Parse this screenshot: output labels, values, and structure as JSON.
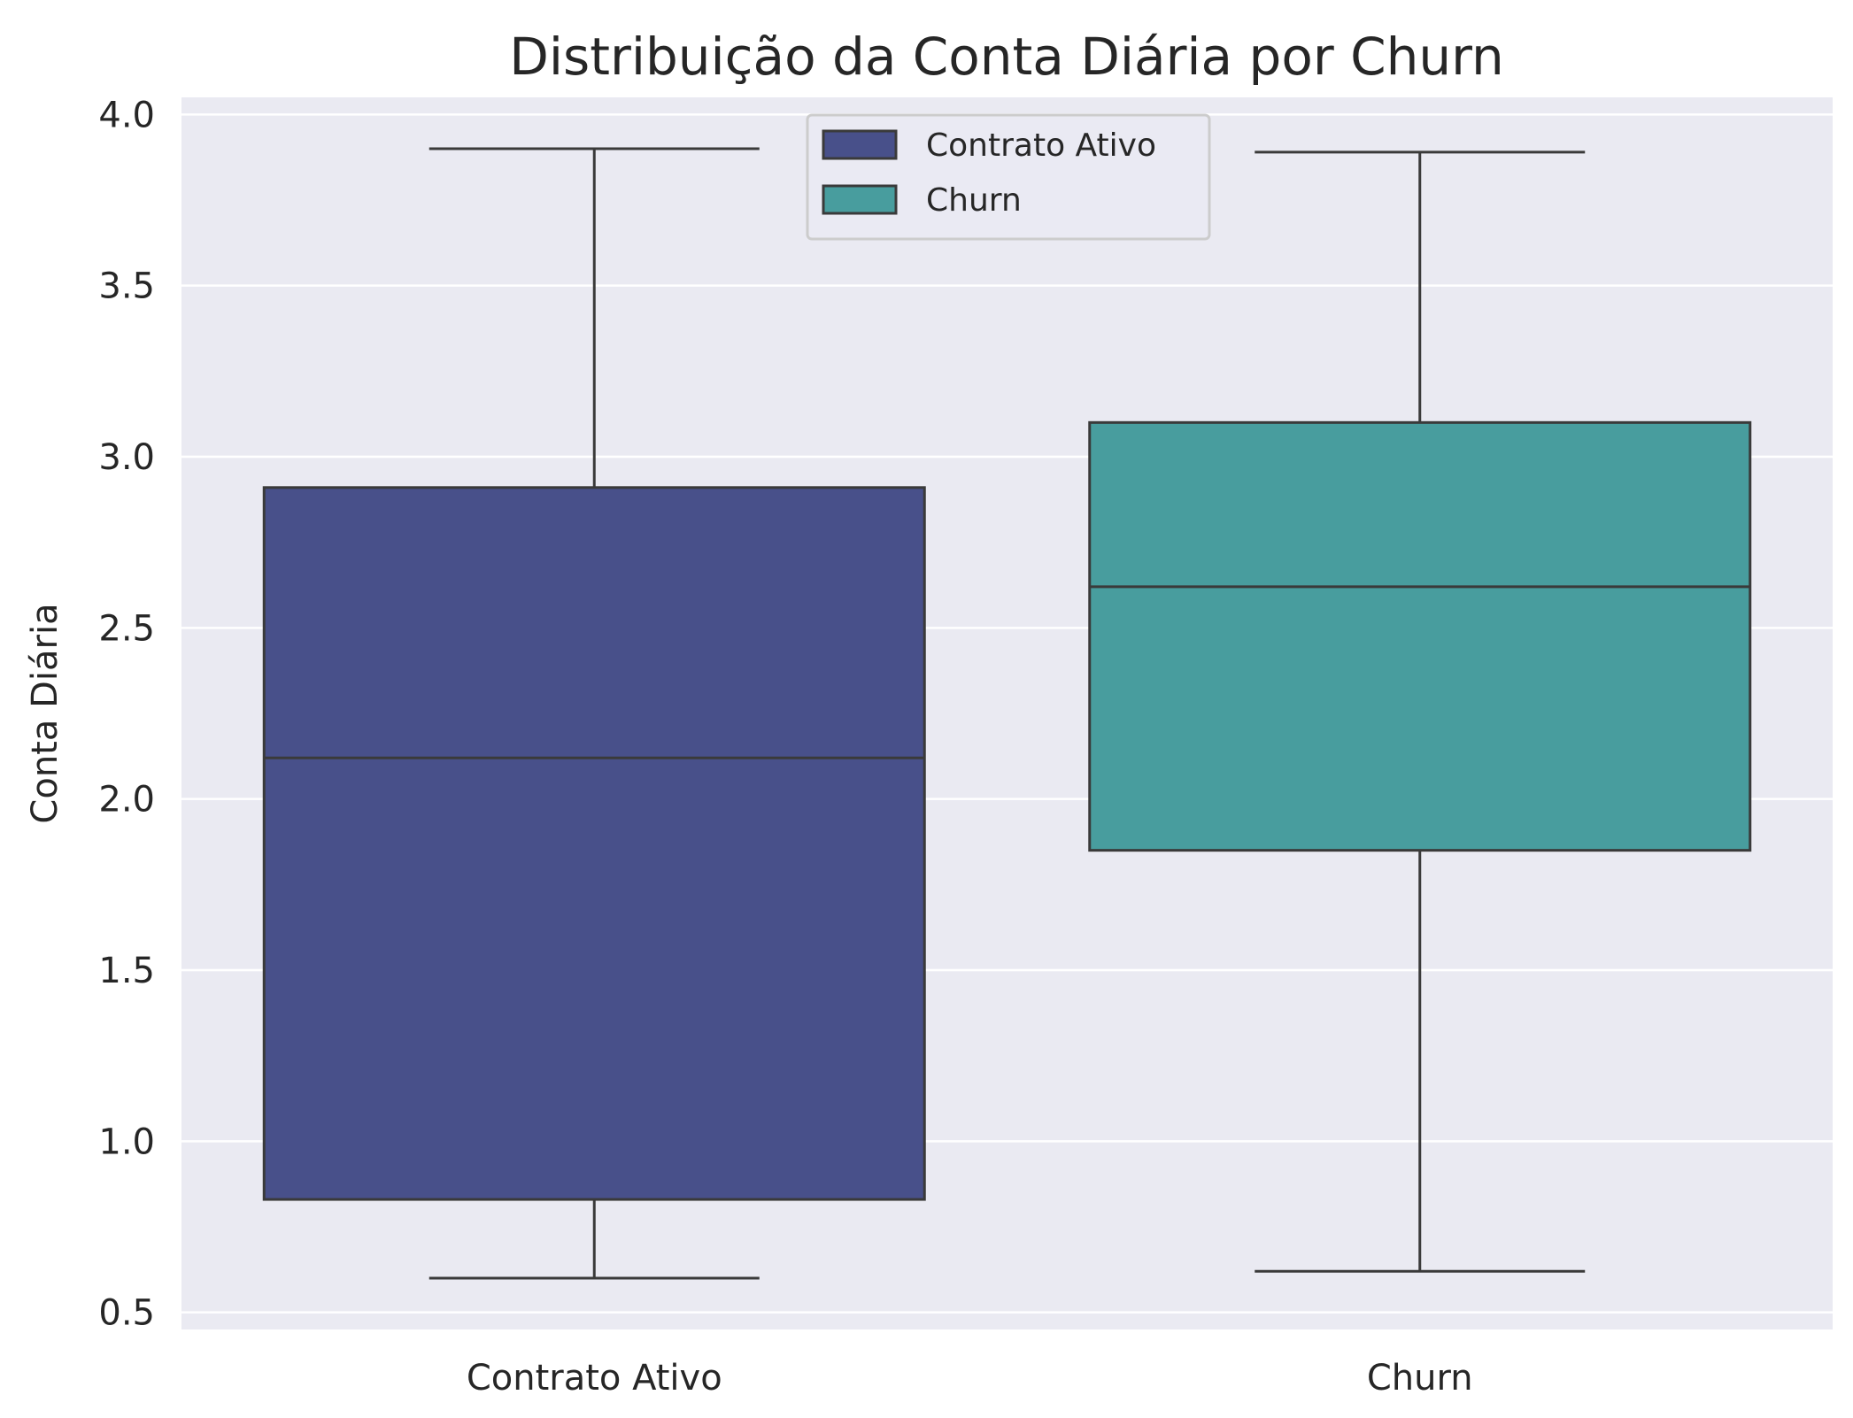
{
  "chart_data": {
    "type": "box",
    "title": "Distribuição da Conta Diária por Churn",
    "xlabel": "",
    "ylabel": "Conta Diária",
    "ylim": [
      0.45,
      4.05
    ],
    "yticks": [
      0.5,
      1.0,
      1.5,
      2.0,
      2.5,
      3.0,
      3.5,
      4.0
    ],
    "ytick_labels": [
      "0.5",
      "1.0",
      "1.5",
      "2.0",
      "2.5",
      "3.0",
      "3.5",
      "4.0"
    ],
    "grid": true,
    "legend_position": "top-center",
    "categories": [
      "Contrato Ativo",
      "Churn"
    ],
    "series": [
      {
        "name": "Contrato Ativo",
        "color": "#48508a",
        "whisker_low": 0.6,
        "q1": 0.83,
        "median": 2.12,
        "q3": 2.91,
        "whisker_high": 3.9
      },
      {
        "name": "Churn",
        "color": "#489d9e",
        "whisker_low": 0.62,
        "q1": 1.85,
        "median": 2.62,
        "q3": 3.1,
        "whisker_high": 3.89
      }
    ],
    "colors": {
      "background": "#eaeaf2",
      "grid": "#ffffff",
      "edge": "#3a3a3a"
    }
  }
}
